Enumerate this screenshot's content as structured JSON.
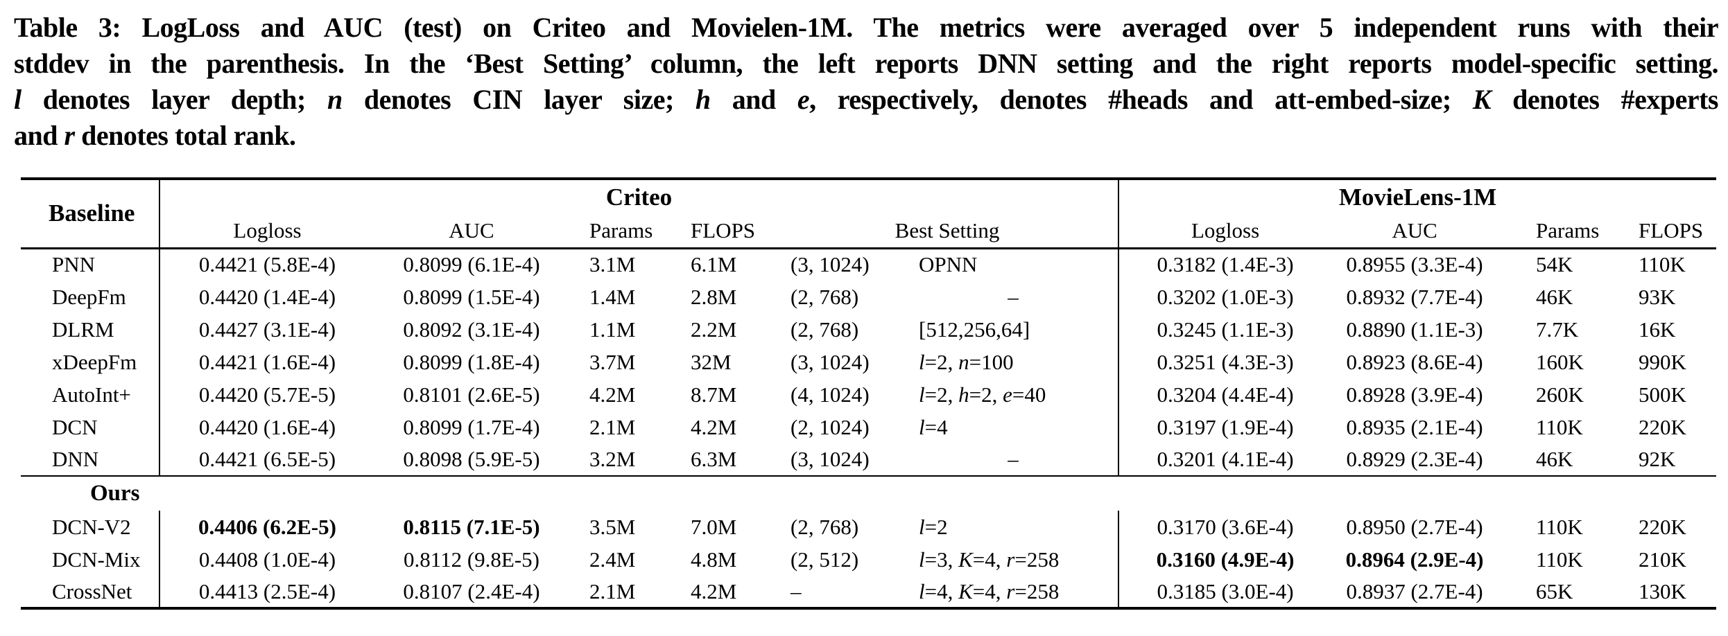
{
  "caption": {
    "lines": [
      [
        {
          "t": "Table 3: LogLoss and AUC (test) on Criteo and Movielen-1M. The metrics were averaged over 5 independent runs with their"
        }
      ],
      [
        {
          "t": "stddev in the parenthesis. In the ‘Best Setting’ column, the left reports DNN setting and the right reports model-specific setting."
        }
      ],
      [
        {
          "t": "l",
          "i": true
        },
        {
          "t": " denotes layer depth; "
        },
        {
          "t": "n",
          "i": true
        },
        {
          "t": " denotes CIN layer size; "
        },
        {
          "t": "h",
          "i": true
        },
        {
          "t": " and "
        },
        {
          "t": "e",
          "i": true
        },
        {
          "t": ", respectively, denotes #heads and att-embed-size; "
        },
        {
          "t": "K",
          "i": true
        },
        {
          "t": " denotes #experts"
        }
      ],
      [
        {
          "t": "and "
        },
        {
          "t": "r",
          "i": true
        },
        {
          "t": " denotes total rank."
        }
      ]
    ]
  },
  "table": {
    "corner_header": "Baseline",
    "groups": [
      {
        "label": "Criteo",
        "columns": [
          "Logloss",
          "AUC",
          "Params",
          "FLOPS",
          "Best Setting"
        ]
      },
      {
        "label": "MovieLens-1M",
        "columns": [
          "Logloss",
          "AUC",
          "Params",
          "FLOPS"
        ]
      }
    ],
    "sections": [
      {
        "label": "",
        "rows": [
          {
            "name": "PNN",
            "criteo": {
              "logloss": "0.4421 (5.8E-4)",
              "auc": "0.8099 (6.1E-4)",
              "params": "3.1M",
              "flops": "6.1M",
              "setting_dnn": "(3, 1024)",
              "setting_model": "OPNN"
            },
            "movielens": {
              "logloss": "0.3182 (1.4E-3)",
              "auc": "0.8955 (3.3E-4)",
              "params": "54K",
              "flops": "110K"
            },
            "bold": []
          },
          {
            "name": "DeepFm",
            "criteo": {
              "logloss": "0.4420 (1.4E-4)",
              "auc": "0.8099 (1.5E-4)",
              "params": "1.4M",
              "flops": "2.8M",
              "setting_dnn": "(2, 768)",
              "setting_model": "–"
            },
            "movielens": {
              "logloss": "0.3202 (1.0E-3)",
              "auc": "0.8932 (7.7E-4)",
              "params": "46K",
              "flops": "93K"
            },
            "bold": []
          },
          {
            "name": "DLRM",
            "criteo": {
              "logloss": "0.4427 (3.1E-4)",
              "auc": "0.8092 (3.1E-4)",
              "params": "1.1M",
              "flops": "2.2M",
              "setting_dnn": "(2, 768)",
              "setting_model": "[512,256,64]"
            },
            "movielens": {
              "logloss": "0.3245 (1.1E-3)",
              "auc": "0.8890 (1.1E-3)",
              "params": "7.7K",
              "flops": "16K"
            },
            "bold": []
          },
          {
            "name": "xDeepFm",
            "criteo": {
              "logloss": "0.4421 (1.6E-4)",
              "auc": "0.8099 (1.8E-4)",
              "params": "3.7M",
              "flops": "32M",
              "setting_dnn": "(3, 1024)",
              "setting_model": "l=2, n=100"
            },
            "movielens": {
              "logloss": "0.3251 (4.3E-3)",
              "auc": "0.8923 (8.6E-4)",
              "params": "160K",
              "flops": "990K"
            },
            "bold": []
          },
          {
            "name": "AutoInt+",
            "criteo": {
              "logloss": "0.4420 (5.7E-5)",
              "auc": "0.8101 (2.6E-5)",
              "params": "4.2M",
              "flops": "8.7M",
              "setting_dnn": "(4, 1024)",
              "setting_model": "l=2, h=2, e=40"
            },
            "movielens": {
              "logloss": "0.3204 (4.4E-4)",
              "auc": "0.8928 (3.9E-4)",
              "params": "260K",
              "flops": "500K"
            },
            "bold": []
          },
          {
            "name": "DCN",
            "criteo": {
              "logloss": "0.4420 (1.6E-4)",
              "auc": "0.8099 (1.7E-4)",
              "params": "2.1M",
              "flops": "4.2M",
              "setting_dnn": "(2, 1024)",
              "setting_model": "l=4"
            },
            "movielens": {
              "logloss": "0.3197 (1.9E-4)",
              "auc": "0.8935 (2.1E-4)",
              "params": "110K",
              "flops": "220K"
            },
            "bold": []
          },
          {
            "name": "DNN",
            "criteo": {
              "logloss": "0.4421 (6.5E-5)",
              "auc": "0.8098 (5.9E-5)",
              "params": "3.2M",
              "flops": "6.3M",
              "setting_dnn": "(3, 1024)",
              "setting_model": "–"
            },
            "movielens": {
              "logloss": "0.3201 (4.1E-4)",
              "auc": "0.8929 (2.3E-4)",
              "params": "46K",
              "flops": "92K"
            },
            "bold": []
          }
        ]
      },
      {
        "label": "Ours",
        "rows": [
          {
            "name": "DCN-V2",
            "criteo": {
              "logloss": "0.4406 (6.2E-5)",
              "auc": "0.8115 (7.1E-5)",
              "params": "3.5M",
              "flops": "7.0M",
              "setting_dnn": "(2, 768)",
              "setting_model": "l=2"
            },
            "movielens": {
              "logloss": "0.3170 (3.6E-4)",
              "auc": "0.8950 (2.7E-4)",
              "params": "110K",
              "flops": "220K"
            },
            "bold": [
              "criteo.logloss",
              "criteo.auc"
            ]
          },
          {
            "name": "DCN-Mix",
            "criteo": {
              "logloss": "0.4408 (1.0E-4)",
              "auc": "0.8112 (9.8E-5)",
              "params": "2.4M",
              "flops": "4.8M",
              "setting_dnn": "(2, 512)",
              "setting_model": "l=3, K=4, r=258"
            },
            "movielens": {
              "logloss": "0.3160 (4.9E-4)",
              "auc": "0.8964 (2.9E-4)",
              "params": "110K",
              "flops": "210K"
            },
            "bold": [
              "movielens.logloss",
              "movielens.auc"
            ]
          },
          {
            "name": "CrossNet",
            "criteo": {
              "logloss": "0.4413 (2.5E-4)",
              "auc": "0.8107 (2.4E-4)",
              "params": "2.1M",
              "flops": "4.2M",
              "setting_dnn": "–",
              "setting_model": "l=4, K=4, r=258"
            },
            "movielens": {
              "logloss": "0.3185 (3.0E-4)",
              "auc": "0.8937 (2.7E-4)",
              "params": "65K",
              "flops": "130K"
            },
            "bold": []
          }
        ]
      }
    ]
  }
}
